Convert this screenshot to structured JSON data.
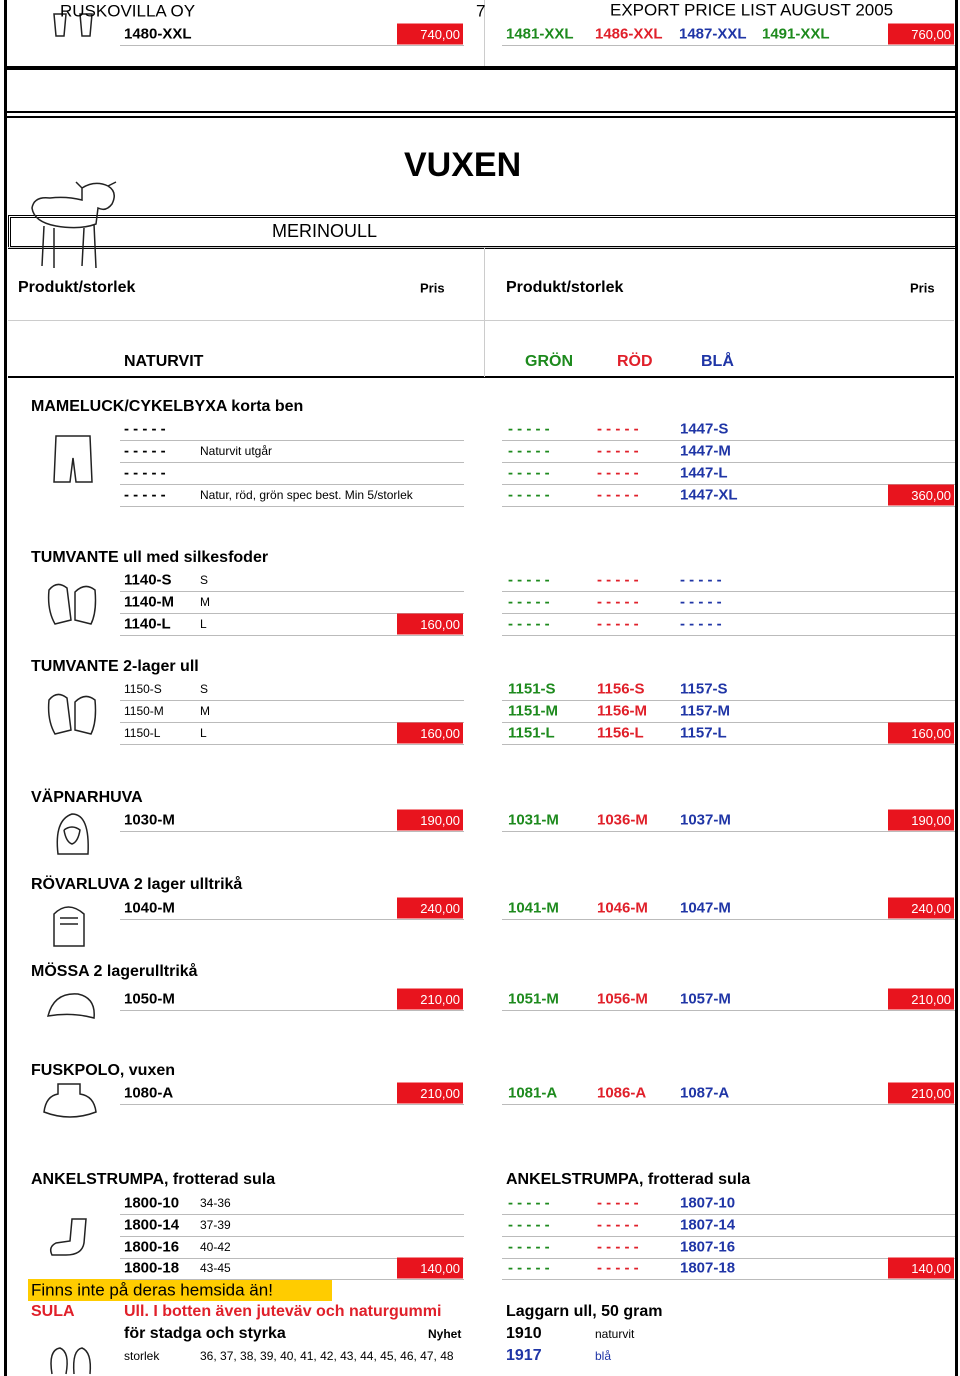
{
  "header": {
    "company": "RUSKOVILLA OY",
    "page": "7",
    "title": "EXPORT PRICE LIST  AUGUST 2005"
  },
  "top_row": {
    "code": "1480-XXL",
    "price": "740,00",
    "variants": [
      "1481-XXL",
      "1486-XXL",
      "1487-XXL",
      "1491-XXL"
    ],
    "variant_colors": [
      "green",
      "red",
      "blue",
      "green"
    ],
    "price_right": "760,00"
  },
  "section": {
    "title": "VUXEN",
    "subtitle": "MERINOULL"
  },
  "columns": [
    "Produkt/storlek",
    "Pris",
    "Produkt/storlek",
    "Pris"
  ],
  "color_header": [
    "NATURVIT",
    "GRÖN",
    "RÖD",
    "BLÅ"
  ],
  "groups": [
    {
      "title": "MAMELUCK/CYKELBYXA korta ben",
      "rows": [
        {
          "code": "- - - - -",
          "green": "- - - - -",
          "red": "- - - - -",
          "blue": "1447-S"
        },
        {
          "code": "- - - - -",
          "note": "Naturvit utgår",
          "green": "- - - - -",
          "red": "- - - - -",
          "blue": "1447-M"
        },
        {
          "code": "- - - - -",
          "green": "- - - - -",
          "red": "- - - - -",
          "blue": "1447-L"
        },
        {
          "code": "- - - - -",
          "note": "Natur, röd, grön spec best. Min 5/storlek",
          "green": "- - - - -",
          "red": "- - - - -",
          "blue": "1447-XL",
          "price_right": "360,00"
        }
      ]
    },
    {
      "title": "TUMVANTE ull med silkesfoder",
      "rows": [
        {
          "code": "1140-S",
          "size": "S",
          "green": "- - - - -",
          "red": "- - - - -",
          "blue": "- - - - -"
        },
        {
          "code": "1140-M",
          "size": "M",
          "green": "- - - - -",
          "red": "- - - - -",
          "blue": "- - - - -"
        },
        {
          "code": "1140-L",
          "size": "L",
          "price": "160,00",
          "green": "- - - - -",
          "red": "- - - - -",
          "blue": "- - - - -"
        }
      ]
    },
    {
      "title": "TUMVANTE 2-lager ull",
      "rows": [
        {
          "code": "1150-S",
          "size": "S",
          "green": "1151-S",
          "red": "1156-S",
          "blue": "1157-S"
        },
        {
          "code": "1150-M",
          "size": "M",
          "green": "1151-M",
          "red": "1156-M",
          "blue": "1157-M"
        },
        {
          "code": "1150-L",
          "size": "L",
          "price": "160,00",
          "green": "1151-L",
          "red": "1156-L",
          "blue": "1157-L",
          "price_right": "160,00"
        }
      ]
    },
    {
      "title": "VÄPNARHUVA",
      "rows": [
        {
          "code": "1030-M",
          "price": "190,00",
          "green": "1031-M",
          "red": "1036-M",
          "blue": "1037-M",
          "price_right": "190,00"
        }
      ]
    },
    {
      "title": "RÖVARLUVA 2 lager ulltrikå",
      "rows": [
        {
          "code": "1040-M",
          "price": "240,00",
          "green": "1041-M",
          "red": "1046-M",
          "blue": "1047-M",
          "price_right": "240,00"
        }
      ]
    },
    {
      "title": "MÖSSA 2 lagerulltrikå",
      "rows": [
        {
          "code": "1050-M",
          "price": "210,00",
          "green": "1051-M",
          "red": "1056-M",
          "blue": "1057-M",
          "price_right": "210,00"
        }
      ]
    },
    {
      "title": "FUSKPOLO, vuxen",
      "rows": [
        {
          "code": "1080-A",
          "price": "210,00",
          "green": "1081-A",
          "red": "1086-A",
          "blue": "1087-A",
          "price_right": "210,00"
        }
      ]
    },
    {
      "title": "ANKELSTRUMPA, frotterad sula",
      "title_right": "ANKELSTRUMPA, frotterad sula",
      "rows": [
        {
          "code": "1800-10",
          "size": "34-36",
          "green": "- - - - -",
          "red": "- - - - -",
          "blue": "1807-10"
        },
        {
          "code": "1800-14",
          "size": "37-39",
          "green": "- - - - -",
          "red": "- - - - -",
          "blue": "1807-14"
        },
        {
          "code": "1800-16",
          "size": "40-42",
          "green": "- - - - -",
          "red": "- - - - -",
          "blue": "1807-16"
        },
        {
          "code": "1800-18",
          "size": "43-45",
          "price": "140,00",
          "green": "- - - - -",
          "red": "- - - - -",
          "blue": "1807-18",
          "price_right": "140,00"
        }
      ]
    }
  ],
  "footer": {
    "notice": "Finns inte på deras hemsida än!",
    "lines": [
      {
        "label": "SULA",
        "text": "Ull. I botten även juteväv och naturgummi",
        "right": "Laggarn ull, 50 gram"
      },
      {
        "text": "för stadga och styrka",
        "tag": "Nyhet",
        "code": "1910",
        "note": "naturvit"
      },
      {
        "small_label": "storlek",
        "sizes": "36, 37, 38, 39, 40, 41, 42, 43, 44, 45, 46, 47, 48",
        "code": "1917",
        "note": "blå"
      }
    ]
  }
}
